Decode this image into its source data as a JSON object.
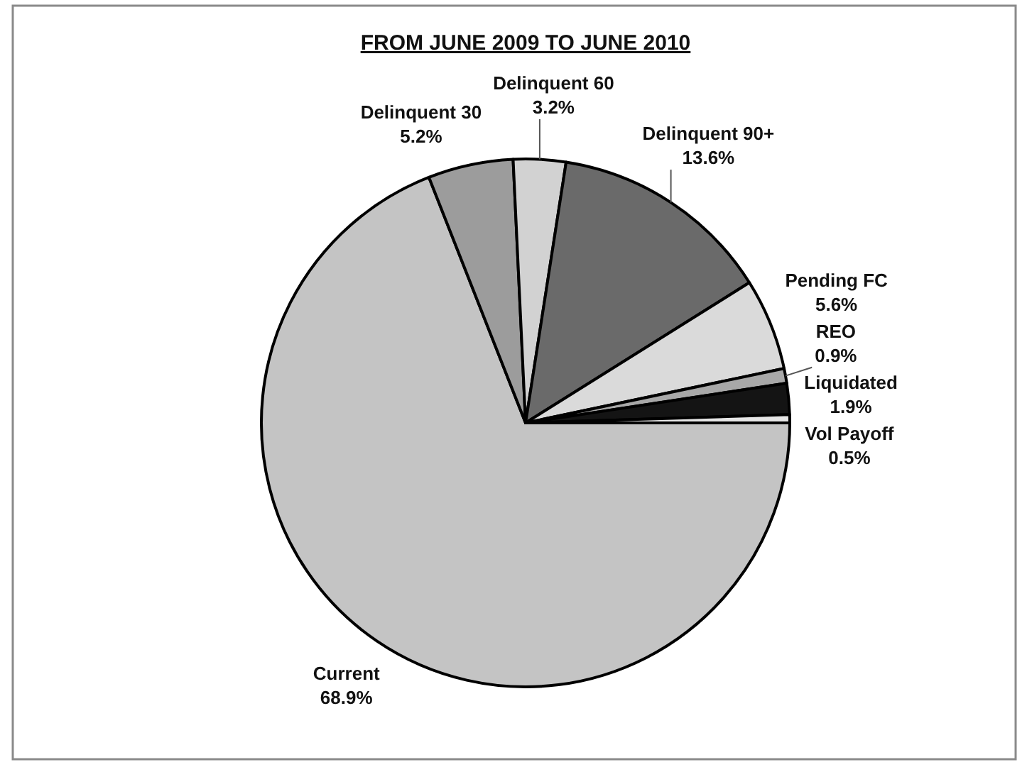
{
  "chart_data": {
    "type": "pie",
    "title": "FROM JUNE 2009 TO JUNE 2010",
    "categories": [
      "Current",
      "Delinquent 30",
      "Delinquent 60",
      "Delinquent 90+",
      "Pending FC",
      "REO",
      "Liquidated",
      "Vol Payoff"
    ],
    "values": [
      68.9,
      5.2,
      3.2,
      13.6,
      5.6,
      0.9,
      1.9,
      0.5
    ],
    "value_labels": [
      "68.9%",
      "5.2%",
      "3.2%",
      "13.6%",
      "5.6%",
      "0.9%",
      "1.9%",
      "0.5%"
    ],
    "colors": [
      "#c4c4c4",
      "#9c9c9c",
      "#d2d2d2",
      "#6a6a6a",
      "#dadada",
      "#a8a8a8",
      "#141414",
      "#e6e6e6"
    ]
  }
}
